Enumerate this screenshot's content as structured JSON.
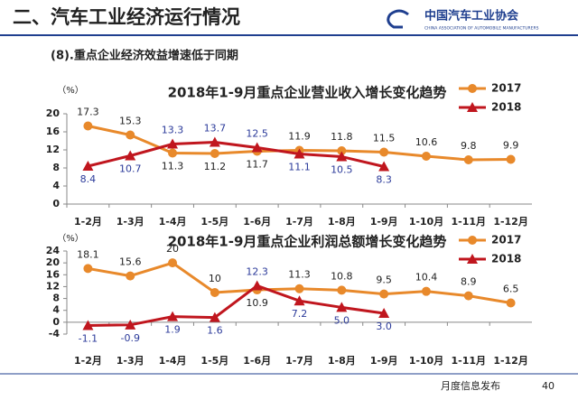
{
  "header": {
    "title": "二、汽车工业经济运行情况",
    "logo": "中国汽车工业协会",
    "logo_en": "CHINA ASSOCIATION OF AUTOMOBILE MANUFACTURERS"
  },
  "subtitle": "(8).重点企业经济效益增速低于同期",
  "footer": {
    "text": "月度信息发布",
    "page": "40"
  },
  "chart_data": [
    {
      "type": "line",
      "title": "2018年1-9月重点企业营业收入增长变化趋势",
      "y_label": "（%）",
      "categories": [
        "1-2月",
        "1-3月",
        "1-4月",
        "1-5月",
        "1-6月",
        "1-7月",
        "1-8月",
        "1-9月",
        "1-10月",
        "1-11月",
        "1-12月"
      ],
      "series": [
        {
          "name": "2017",
          "color": "#E8892B",
          "label_color": "#222222",
          "marker": "circle",
          "values": [
            17.3,
            15.3,
            11.3,
            11.2,
            11.7,
            11.9,
            11.8,
            11.5,
            10.6,
            9.8,
            9.9
          ]
        },
        {
          "name": "2018",
          "color": "#C0161E",
          "label_color": "#2B3A9A",
          "marker": "triangle",
          "values": [
            8.4,
            10.7,
            13.3,
            13.7,
            12.5,
            11.1,
            10.5,
            8.3,
            null,
            null,
            null
          ]
        }
      ],
      "ylim": [
        0,
        20
      ],
      "yticks": [
        0,
        4,
        8,
        12,
        16,
        20
      ],
      "legend": "upper right"
    },
    {
      "type": "line",
      "title": "2018年1-9月重点企业利润总额增长变化趋势",
      "y_label": "（%）",
      "categories": [
        "1-2月",
        "1-3月",
        "1-4月",
        "1-5月",
        "1-6月",
        "1-7月",
        "1-8月",
        "1-9月",
        "1-10月",
        "1-11月",
        "1-12月"
      ],
      "series": [
        {
          "name": "2017",
          "color": "#E8892B",
          "label_color": "#222222",
          "marker": "circle",
          "values": [
            18.1,
            15.6,
            20,
            10,
            10.9,
            11.3,
            10.8,
            9.5,
            10.4,
            8.9,
            6.5
          ]
        },
        {
          "name": "2018",
          "color": "#C0161E",
          "label_color": "#2B3A9A",
          "marker": "triangle",
          "values": [
            -1.1,
            -0.9,
            1.9,
            1.6,
            12.3,
            7.2,
            5.0,
            3.0,
            null,
            null,
            null
          ],
          "value_labels": [
            "-1.1",
            "-0.9",
            "1.9",
            "1.6",
            "12.3",
            "7.2",
            "5.0",
            "3.0",
            null,
            null,
            null
          ]
        }
      ],
      "ylim": [
        -4,
        24
      ],
      "yticks": [
        -4,
        0,
        4,
        8,
        12,
        16,
        20,
        24
      ],
      "legend": "upper right"
    }
  ]
}
